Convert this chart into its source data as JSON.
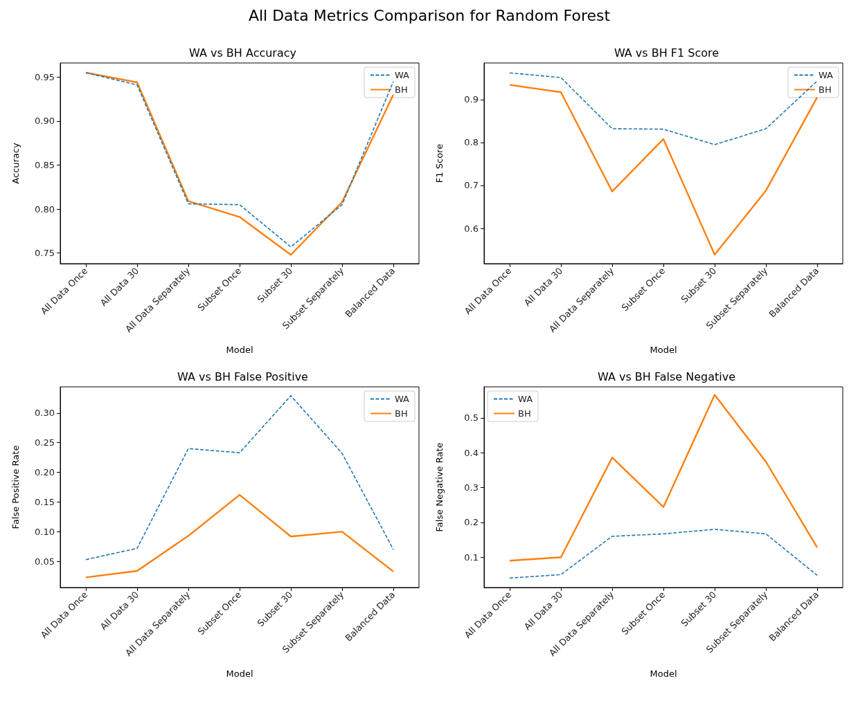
{
  "chart_data": [
    {
      "type": "line",
      "title": "WA vs BH Accuracy",
      "xlabel": "Model",
      "ylabel": "Accuracy",
      "annotations": [
        "All Data Metrics Comparison for Random Forest"
      ],
      "categories": [
        "All Data Once",
        "All Data 30",
        "All Data Separately",
        "Subset Once",
        "Subset 30",
        "Subset Separately",
        "Balanced Data"
      ],
      "series": [
        {
          "name": "WA",
          "color": "#1f77b4",
          "line_style": "dashed",
          "values": [
            0.955,
            0.941,
            0.806,
            0.805,
            0.757,
            0.805,
            0.945
          ]
        },
        {
          "name": "BH",
          "color": "#ff7f0e",
          "line_style": "solid",
          "values": [
            0.955,
            0.944,
            0.809,
            0.791,
            0.748,
            0.808,
            0.93
          ]
        }
      ],
      "ylim": [
        0.738,
        0.966
      ],
      "yticks": [
        0.75,
        {
          "value": 0.8,
          "label": "0.80"
        },
        0.85,
        {
          "value": 0.9,
          "label": "0.90"
        },
        0.95
      ],
      "legend": "top right",
      "marker": "none",
      "grid": false
    },
    {
      "type": "line",
      "title": "WA vs BH F1 Score",
      "xlabel": "Model",
      "ylabel": "F1 Score",
      "categories": [
        "All Data Once",
        "All Data 30",
        "All Data Separately",
        "Subset Once",
        "Subset 30",
        "Subset Separately",
        "Balanced Data"
      ],
      "series": [
        {
          "name": "WA",
          "color": "#1f77b4",
          "line_style": "dashed",
          "values": [
            0.962,
            0.951,
            0.832,
            0.831,
            0.795,
            0.832,
            0.943
          ]
        },
        {
          "name": "BH",
          "color": "#ff7f0e",
          "line_style": "solid",
          "values": [
            0.934,
            0.917,
            0.686,
            0.808,
            0.539,
            0.688,
            0.905
          ]
        }
      ],
      "ylim": [
        0.518,
        0.985
      ],
      "yticks": [
        0.6,
        0.7,
        0.8,
        0.9
      ],
      "legend": "top right",
      "marker": "none",
      "grid": false
    },
    {
      "type": "line",
      "title": "WA vs BH False Positive",
      "xlabel": "Model",
      "ylabel": "False Positive Rate",
      "categories": [
        "All Data Once",
        "All Data 30",
        "All Data Separately",
        "Subset Once",
        "Subset 30",
        "Subset Separately",
        "Balanced Data"
      ],
      "series": [
        {
          "name": "WA",
          "color": "#1f77b4",
          "line_style": "dashed",
          "values": [
            0.053,
            0.072,
            0.24,
            0.233,
            0.329,
            0.232,
            0.07
          ]
        },
        {
          "name": "BH",
          "color": "#ff7f0e",
          "line_style": "solid",
          "values": [
            0.023,
            0.034,
            0.093,
            0.162,
            0.092,
            0.1,
            0.033
          ]
        }
      ],
      "ylim": [
        0.006,
        0.344
      ],
      "yticks": [
        0.05,
        {
          "value": 0.1,
          "label": "0.10"
        },
        0.15,
        {
          "value": 0.2,
          "label": "0.20"
        },
        0.25,
        {
          "value": 0.3,
          "label": "0.30"
        }
      ],
      "legend": "top right",
      "marker": "none",
      "grid": false
    },
    {
      "type": "line",
      "title": "WA vs BH False Negative",
      "xlabel": "Model",
      "ylabel": "False Negative Rate",
      "categories": [
        "All Data Once",
        "All Data 30",
        "All Data Separately",
        "Subset Once",
        "Subset 30",
        "Subset Separately",
        "Balanced Data"
      ],
      "series": [
        {
          "name": "WA",
          "color": "#1f77b4",
          "line_style": "dashed",
          "values": [
            0.04,
            0.05,
            0.16,
            0.167,
            0.18,
            0.167,
            0.048
          ]
        },
        {
          "name": "BH",
          "color": "#ff7f0e",
          "line_style": "solid",
          "values": [
            0.09,
            0.1,
            0.386,
            0.244,
            0.566,
            0.374,
            0.128
          ]
        }
      ],
      "ylim": [
        0.013,
        0.589
      ],
      "yticks": [
        0.1,
        0.2,
        0.3,
        0.4,
        0.5
      ],
      "legend": "top left",
      "marker": "none",
      "grid": false
    }
  ]
}
